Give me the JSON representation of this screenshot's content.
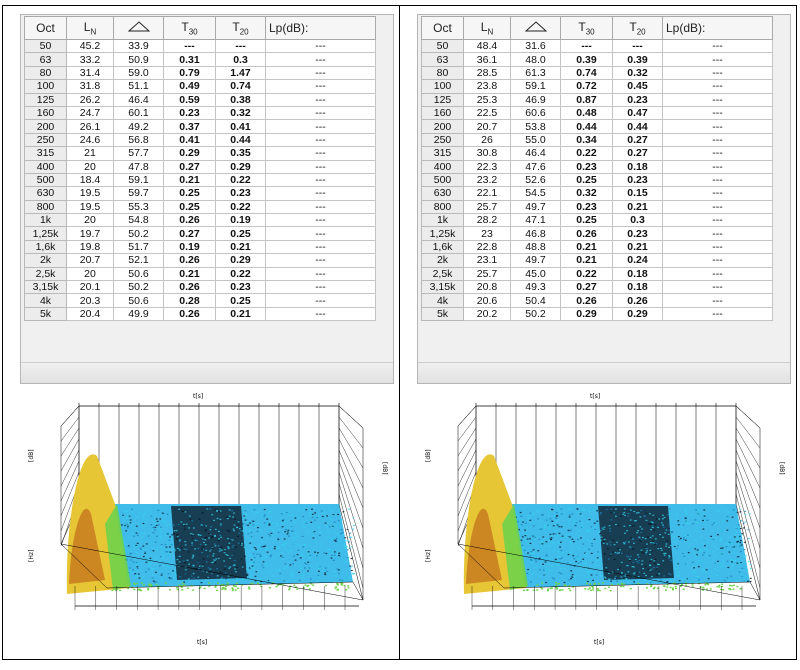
{
  "headers": {
    "oct": "Oct",
    "ln_main": "L",
    "ln_sub": "N",
    "t30_main": "T",
    "t30_sub": "30",
    "t20_main": "T",
    "t20_sub": "20",
    "lp": "Lp(dB):"
  },
  "panels": [
    {
      "rows": [
        {
          "oct": "50",
          "ln": "45.2",
          "delta": "33.9",
          "t30": "---",
          "t20": "---",
          "lp": "---"
        },
        {
          "oct": "63",
          "ln": "33.2",
          "delta": "50.9",
          "t30": "0.31",
          "t20": "0.3",
          "lp": "---"
        },
        {
          "oct": "80",
          "ln": "31.4",
          "delta": "59.0",
          "t30": "0.79",
          "t20": "1.47",
          "lp": "---"
        },
        {
          "oct": "100",
          "ln": "31.8",
          "delta": "51.1",
          "t30": "0.49",
          "t20": "0.74",
          "lp": "---"
        },
        {
          "oct": "125",
          "ln": "26.2",
          "delta": "46.4",
          "t30": "0.59",
          "t20": "0.38",
          "lp": "---"
        },
        {
          "oct": "160",
          "ln": "24.7",
          "delta": "60.1",
          "t30": "0.23",
          "t20": "0.32",
          "lp": "---"
        },
        {
          "oct": "200",
          "ln": "26.1",
          "delta": "49.2",
          "t30": "0.37",
          "t20": "0.41",
          "lp": "---"
        },
        {
          "oct": "250",
          "ln": "24.6",
          "delta": "56.8",
          "t30": "0.41",
          "t20": "0.44",
          "lp": "---"
        },
        {
          "oct": "315",
          "ln": "21",
          "delta": "57.7",
          "t30": "0.29",
          "t20": "0.35",
          "lp": "---"
        },
        {
          "oct": "400",
          "ln": "20",
          "delta": "47.8",
          "t30": "0.27",
          "t20": "0.29",
          "lp": "---"
        },
        {
          "oct": "500",
          "ln": "18.4",
          "delta": "59.1",
          "t30": "0.21",
          "t20": "0.22",
          "lp": "---"
        },
        {
          "oct": "630",
          "ln": "19.5",
          "delta": "59.7",
          "t30": "0.25",
          "t20": "0.23",
          "lp": "---"
        },
        {
          "oct": "800",
          "ln": "19.5",
          "delta": "55.3",
          "t30": "0.25",
          "t20": "0.22",
          "lp": "---"
        },
        {
          "oct": "1k",
          "ln": "20",
          "delta": "54.8",
          "t30": "0.26",
          "t20": "0.19",
          "lp": "---"
        },
        {
          "oct": "1,25k",
          "ln": "19.7",
          "delta": "50.2",
          "t30": "0.27",
          "t20": "0.25",
          "lp": "---"
        },
        {
          "oct": "1,6k",
          "ln": "19.8",
          "delta": "51.7",
          "t30": "0.19",
          "t20": "0.21",
          "lp": "---"
        },
        {
          "oct": "2k",
          "ln": "20.7",
          "delta": "52.1",
          "t30": "0.26",
          "t20": "0.29",
          "lp": "---"
        },
        {
          "oct": "2,5k",
          "ln": "20",
          "delta": "50.6",
          "t30": "0.21",
          "t20": "0.22",
          "lp": "---"
        },
        {
          "oct": "3,15k",
          "ln": "20.1",
          "delta": "50.2",
          "t30": "0.26",
          "t20": "0.23",
          "lp": "---"
        },
        {
          "oct": "4k",
          "ln": "20.3",
          "delta": "50.6",
          "t30": "0.28",
          "t20": "0.25",
          "lp": "---"
        },
        {
          "oct": "5k",
          "ln": "20.4",
          "delta": "49.9",
          "t30": "0.26",
          "t20": "0.21",
          "lp": "---"
        }
      ]
    },
    {
      "rows": [
        {
          "oct": "50",
          "ln": "48.4",
          "delta": "31.6",
          "t30": "---",
          "t20": "---",
          "lp": "---"
        },
        {
          "oct": "63",
          "ln": "36.1",
          "delta": "48.0",
          "t30": "0.39",
          "t20": "0.39",
          "lp": "---"
        },
        {
          "oct": "80",
          "ln": "28.5",
          "delta": "61.3",
          "t30": "0.74",
          "t20": "0.32",
          "lp": "---"
        },
        {
          "oct": "100",
          "ln": "23.8",
          "delta": "59.1",
          "t30": "0.72",
          "t20": "0.45",
          "lp": "---"
        },
        {
          "oct": "125",
          "ln": "25.3",
          "delta": "46.9",
          "t30": "0.87",
          "t20": "0.23",
          "lp": "---"
        },
        {
          "oct": "160",
          "ln": "22.5",
          "delta": "60.6",
          "t30": "0.48",
          "t20": "0.47",
          "lp": "---"
        },
        {
          "oct": "200",
          "ln": "20.7",
          "delta": "53.8",
          "t30": "0.44",
          "t20": "0.44",
          "lp": "---"
        },
        {
          "oct": "250",
          "ln": "26",
          "delta": "55.0",
          "t30": "0.34",
          "t20": "0.27",
          "lp": "---"
        },
        {
          "oct": "315",
          "ln": "30.8",
          "delta": "46.4",
          "t30": "0.22",
          "t20": "0.27",
          "lp": "---"
        },
        {
          "oct": "400",
          "ln": "22.3",
          "delta": "47.6",
          "t30": "0.23",
          "t20": "0.18",
          "lp": "---"
        },
        {
          "oct": "500",
          "ln": "23.2",
          "delta": "52.6",
          "t30": "0.25",
          "t20": "0.23",
          "lp": "---"
        },
        {
          "oct": "630",
          "ln": "22.1",
          "delta": "54.5",
          "t30": "0.32",
          "t20": "0.15",
          "lp": "---"
        },
        {
          "oct": "800",
          "ln": "25.7",
          "delta": "49.7",
          "t30": "0.23",
          "t20": "0.21",
          "lp": "---"
        },
        {
          "oct": "1k",
          "ln": "28.2",
          "delta": "47.1",
          "t30": "0.25",
          "t20": "0.3",
          "lp": "---"
        },
        {
          "oct": "1,25k",
          "ln": "23",
          "delta": "46.8",
          "t30": "0.26",
          "t20": "0.23",
          "lp": "---"
        },
        {
          "oct": "1,6k",
          "ln": "22.8",
          "delta": "48.8",
          "t30": "0.21",
          "t20": "0.21",
          "lp": "---"
        },
        {
          "oct": "2k",
          "ln": "23.1",
          "delta": "49.7",
          "t30": "0.21",
          "t20": "0.24",
          "lp": "---"
        },
        {
          "oct": "2,5k",
          "ln": "25.7",
          "delta": "45.0",
          "t30": "0.22",
          "t20": "0.18",
          "lp": "---"
        },
        {
          "oct": "3,15k",
          "ln": "20.8",
          "delta": "49.3",
          "t30": "0.27",
          "t20": "0.18",
          "lp": "---"
        },
        {
          "oct": "4k",
          "ln": "20.6",
          "delta": "50.4",
          "t30": "0.26",
          "t20": "0.26",
          "lp": "---"
        },
        {
          "oct": "5k",
          "ln": "20.2",
          "delta": "50.2",
          "t30": "0.29",
          "t20": "0.29",
          "lp": "---"
        }
      ]
    }
  ],
  "plot": {
    "axis_top": "t[s]",
    "axis_bottom": "t[s]",
    "axis_left": "[dB]",
    "axis_right": "[dB]",
    "axis_left_lower": "[Hz]",
    "colors": {
      "surface_blue": "#1fb0e6",
      "surface_cyan": "#35d3ec",
      "dark": "#0a1420",
      "peak_yellow": "#e6c635",
      "peak_orange": "#c77a1e",
      "green": "#6fd24a",
      "grid": "#000000"
    }
  }
}
